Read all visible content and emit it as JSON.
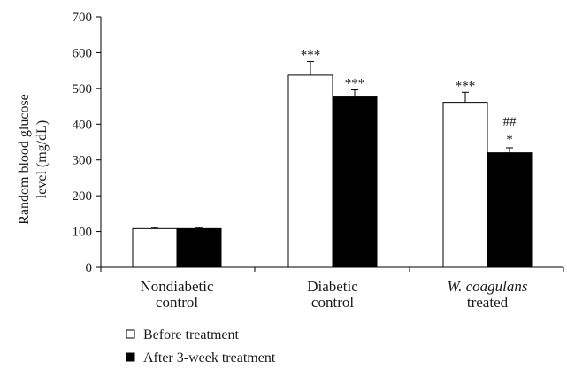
{
  "chart_data": {
    "type": "bar",
    "categories": [
      {
        "line1": "Nondiabetic",
        "line2": "control",
        "italic": false
      },
      {
        "line1": "Diabetic",
        "line2": "control",
        "italic": false
      },
      {
        "line1": "W. coagulans",
        "line2": "treated",
        "italic": true
      }
    ],
    "series": [
      {
        "name": "Before treatment",
        "color": "#ffffff",
        "values": [
          108,
          537,
          461
        ],
        "errors": [
          3,
          38,
          28
        ],
        "annotations": [
          [],
          [
            "***"
          ],
          [
            "***"
          ]
        ]
      },
      {
        "name": "After 3-week treatment",
        "color": "#000000",
        "values": [
          108,
          476,
          320
        ],
        "errors": [
          3,
          20,
          14
        ],
        "annotations": [
          [],
          [
            "***"
          ],
          [
            "*",
            "##"
          ]
        ]
      }
    ],
    "ylabel_lines": [
      "Random blood glucose",
      "level (mg/dL)"
    ],
    "ylim": [
      0,
      700
    ],
    "yticks": [
      0,
      100,
      200,
      300,
      400,
      500,
      600,
      700
    ],
    "grid": false,
    "legend_position": "bottom-left"
  }
}
